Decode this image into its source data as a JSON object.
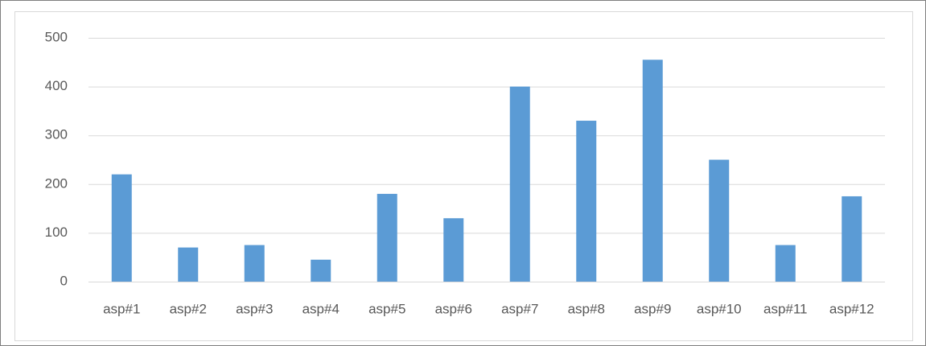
{
  "chart_data": {
    "type": "bar",
    "categories": [
      "asp#1",
      "asp#2",
      "asp#3",
      "asp#4",
      "asp#5",
      "asp#6",
      "asp#7",
      "asp#8",
      "asp#9",
      "asp#10",
      "asp#11",
      "asp#12"
    ],
    "values": [
      220,
      70,
      75,
      45,
      180,
      130,
      400,
      330,
      455,
      250,
      75,
      175
    ],
    "color": "#5b9bd5",
    "ylim": [
      0,
      500
    ],
    "yticks": [
      0,
      100,
      200,
      300,
      400,
      500
    ],
    "grid": true
  }
}
